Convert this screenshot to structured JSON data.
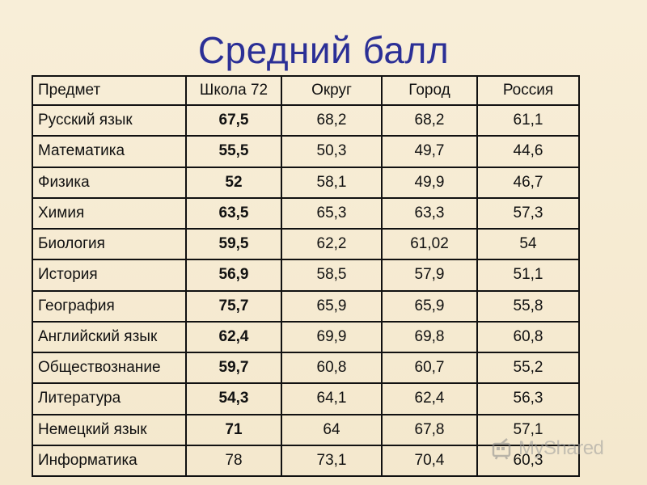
{
  "title": "Средний балл",
  "table": {
    "headers": [
      "Предмет",
      "Школа 72",
      "Округ",
      "Город",
      "Россия"
    ],
    "rows": [
      [
        "Русский язык",
        "67,5",
        "68,2",
        "68,2",
        "61,1"
      ],
      [
        "Математика",
        "55,5",
        "50,3",
        "49,7",
        "44,6"
      ],
      [
        "Физика",
        "52",
        "58,1",
        "49,9",
        "46,7"
      ],
      [
        "Химия",
        "63,5",
        "65,3",
        "63,3",
        "57,3"
      ],
      [
        "Биология",
        "59,5",
        "62,2",
        "61,02",
        "54"
      ],
      [
        "История",
        "56,9",
        "58,5",
        "57,9",
        "51,1"
      ],
      [
        "География",
        "75,7",
        "65,9",
        "65,9",
        "55,8"
      ],
      [
        "Английский язык",
        "62,4",
        "69,9",
        "69,8",
        "60,8"
      ],
      [
        "Обществознание",
        "59,7",
        "60,8",
        "60,7",
        "55,2"
      ],
      [
        "Литература",
        "54,3",
        "64,1",
        "62,4",
        "56,3"
      ],
      [
        "Немецкий язык",
        "71",
        "64",
        "67,8",
        "57,1"
      ],
      [
        "Информатика",
        "78",
        "73,1",
        "70,4",
        "60,3"
      ]
    ],
    "bold_school_rows": [
      true,
      true,
      true,
      true,
      true,
      true,
      true,
      true,
      true,
      true,
      true,
      false
    ]
  },
  "watermark": {
    "text": "MyShared",
    "icon": "myshared-logo-icon"
  },
  "colors": {
    "background": "#f6ecd4",
    "title": "#2b2f96",
    "border": "#111111"
  }
}
